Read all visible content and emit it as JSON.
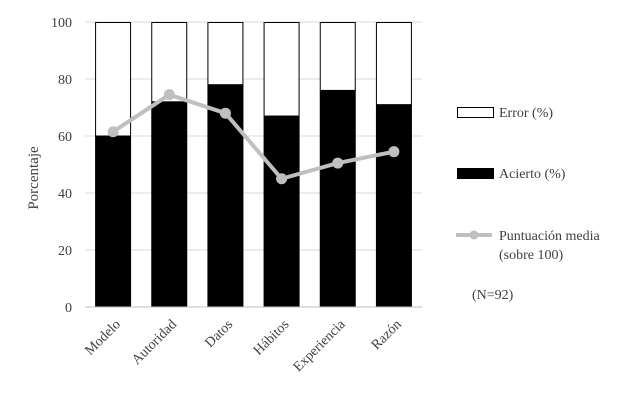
{
  "chart_data": {
    "type": "bar",
    "stacked": true,
    "categories": [
      "Modelo",
      "Autoridad",
      "Datos",
      "Hábitos",
      "Experiencia",
      "Razón"
    ],
    "series": [
      {
        "name": "Error (%)",
        "values": [
          40,
          28,
          22,
          33,
          24,
          29
        ],
        "color": "#ffffff"
      },
      {
        "name": "Acierto (%)",
        "values": [
          60,
          72,
          78,
          67,
          76,
          71
        ],
        "color": "#000000"
      },
      {
        "name": "Puntuación media (sobre 100)",
        "type": "line",
        "values": [
          61.5,
          74.5,
          68.0,
          45.0,
          50.5,
          54.5
        ],
        "color": "#bfbfbf"
      }
    ],
    "ylabel": "Porcentaje",
    "ylim": [
      0,
      100
    ],
    "yticks": [
      0,
      20,
      40,
      60,
      80,
      100
    ],
    "grid": true,
    "legend_position": "right",
    "annotation": "(N=92)"
  },
  "legend": {
    "error_label": "Error (%)",
    "acierto_label": "Acierto (%)",
    "mean_label_line1": "Puntuación media",
    "mean_label_line2": "(sobre 100)",
    "note": "(N=92)"
  }
}
